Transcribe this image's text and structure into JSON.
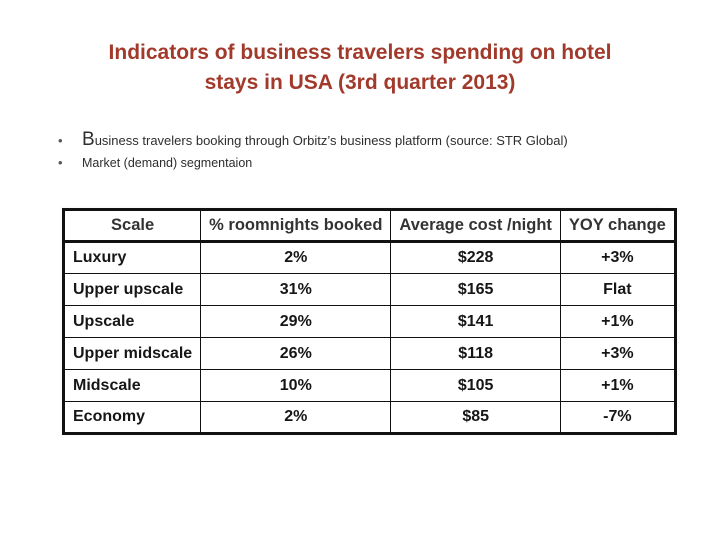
{
  "colors": {
    "title": "#a23a2c",
    "table_border": "#111111"
  },
  "title": {
    "line1": "Indicators of business travelers spending on hotel",
    "line2": "stays in USA (3rd quarter 2013)"
  },
  "bullets": {
    "marker": "•",
    "item1": "Business travelers booking through Orbitz’s business platform (source: STR Global)",
    "item2": "Market (demand) segmentaion"
  },
  "table": {
    "headers": [
      "Scale",
      "% roomnights booked",
      "Average cost /night",
      "YOY change"
    ],
    "rows": [
      {
        "cells": [
          "Luxury",
          "2%",
          "$228",
          "+3%"
        ]
      },
      {
        "cells": [
          "Upper upscale",
          "31%",
          "$165",
          "Flat"
        ]
      },
      {
        "cells": [
          "Upscale",
          "29%",
          "$141",
          "+1%"
        ]
      },
      {
        "cells": [
          "Upper midscale",
          "26%",
          "$118",
          "+3%"
        ]
      },
      {
        "cells": [
          "Midscale",
          "10%",
          "$105",
          "+1%"
        ]
      },
      {
        "cells": [
          "Economy",
          "2%",
          "$85",
          "-7%"
        ]
      }
    ]
  }
}
